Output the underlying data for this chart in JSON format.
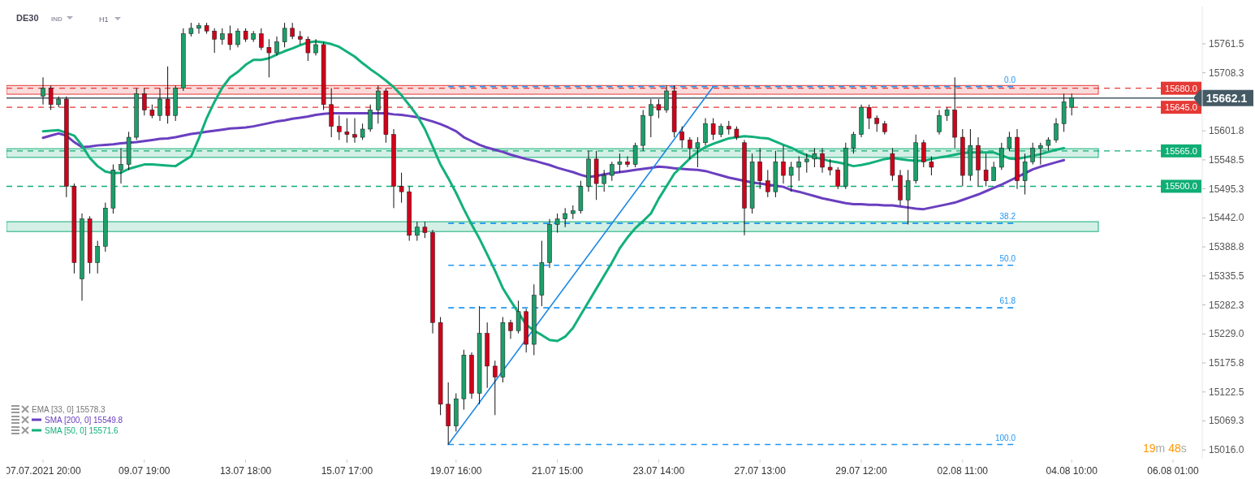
{
  "chart_data": {
    "type": "candlestick",
    "title": "DE30",
    "categories": [
      "07.07.2021 20:00",
      null,
      null,
      null,
      null,
      null,
      null,
      null,
      null,
      null,
      null,
      null,
      null,
      "09.07 19:00",
      null,
      null,
      null,
      null,
      null,
      null,
      null,
      null,
      null,
      null,
      null,
      null,
      "13.07 18:00",
      null,
      null,
      null,
      null,
      null,
      null,
      null,
      null,
      null,
      null,
      null,
      null,
      "15.07 17:00",
      null,
      null,
      null,
      null,
      null,
      null,
      null,
      null,
      null,
      null,
      null,
      null,
      null,
      "19.07 16:00",
      null,
      null,
      null,
      null,
      null,
      null,
      null,
      null,
      null,
      null,
      null,
      null,
      "21.07 15:00",
      null,
      null,
      null,
      null,
      null,
      null,
      null,
      null,
      null,
      null,
      null,
      null,
      "23.07 14:00",
      null,
      null,
      null,
      null,
      null,
      null,
      null,
      null,
      null,
      null,
      null,
      null,
      "27.07 13:00",
      null,
      null,
      null,
      null,
      null,
      null,
      null,
      null,
      null,
      null,
      null,
      null,
      "29.07 12:00",
      null,
      null,
      null,
      null,
      null,
      null,
      null,
      null,
      null,
      null,
      null,
      null,
      "02.08 11:00",
      null,
      null,
      null,
      null,
      null,
      null,
      null,
      null,
      null,
      null,
      null,
      null,
      null,
      "04.08 10:00",
      null,
      null,
      null,
      null,
      null,
      null,
      null,
      null,
      null,
      null,
      null,
      null,
      "06.08 01:00",
      null,
      null,
      null,
      null,
      null,
      null,
      null,
      null
    ],
    "ohlc": [
      [
        15665,
        15700,
        15650,
        15680
      ],
      [
        15680,
        15685,
        15640,
        15650
      ],
      [
        15650,
        15665,
        15645,
        15660
      ],
      [
        15660,
        15665,
        15480,
        15500
      ],
      [
        15500,
        15505,
        15340,
        15360
      ],
      [
        15330,
        15450,
        15290,
        15440
      ],
      [
        15440,
        15445,
        15340,
        15360
      ],
      [
        15360,
        15400,
        15340,
        15390
      ],
      [
        15390,
        15470,
        15380,
        15460
      ],
      [
        15460,
        15540,
        15450,
        15530
      ],
      [
        15530,
        15570,
        15505,
        15540
      ],
      [
        15540,
        15600,
        15530,
        15590
      ],
      [
        15590,
        15680,
        15585,
        15670
      ],
      [
        15670,
        15680,
        15630,
        15640
      ],
      [
        15640,
        15650,
        15625,
        15630
      ],
      [
        15630,
        15680,
        15620,
        15660
      ],
      [
        15660,
        15720,
        15615,
        15630
      ],
      [
        15630,
        15685,
        15620,
        15680
      ],
      [
        15680,
        15790,
        15675,
        15780
      ],
      [
        15780,
        15800,
        15775,
        15790
      ],
      [
        15790,
        15800,
        15780,
        15795
      ],
      [
        15795,
        15800,
        15780,
        15785
      ],
      [
        15785,
        15790,
        15745,
        15770
      ],
      [
        15770,
        15790,
        15760,
        15780
      ],
      [
        15780,
        15795,
        15750,
        15760
      ],
      [
        15760,
        15790,
        15755,
        15785
      ],
      [
        15785,
        15790,
        15765,
        15770
      ],
      [
        15770,
        15785,
        15765,
        15780
      ],
      [
        15780,
        15790,
        15750,
        15755
      ],
      [
        15755,
        15770,
        15700,
        15745
      ],
      [
        15745,
        15775,
        15740,
        15765
      ],
      [
        15765,
        15800,
        15755,
        15790
      ],
      [
        15790,
        15800,
        15770,
        15775
      ],
      [
        15775,
        15785,
        15760,
        15770
      ],
      [
        15770,
        15775,
        15730,
        15745
      ],
      [
        15745,
        15770,
        15740,
        15760
      ],
      [
        15760,
        15765,
        15640,
        15650
      ],
      [
        15650,
        15680,
        15590,
        15610
      ],
      [
        15610,
        15630,
        15585,
        15600
      ],
      [
        15600,
        15625,
        15580,
        15595
      ],
      [
        15595,
        15625,
        15580,
        15590
      ],
      [
        15590,
        15615,
        15585,
        15605
      ],
      [
        15605,
        15650,
        15600,
        15640
      ],
      [
        15640,
        15685,
        15615,
        15675
      ],
      [
        15675,
        15680,
        15580,
        15595
      ],
      [
        15595,
        15605,
        15460,
        15500
      ],
      [
        15500,
        15525,
        15470,
        15490
      ],
      [
        15490,
        15500,
        15400,
        15410
      ],
      [
        15410,
        15435,
        15400,
        15425
      ],
      [
        15425,
        15435,
        15405,
        15415
      ],
      [
        15415,
        15420,
        15230,
        15250
      ],
      [
        15250,
        15260,
        15080,
        15100
      ],
      [
        15100,
        15140,
        15026,
        15060
      ],
      [
        15060,
        15120,
        15050,
        15110
      ],
      [
        15110,
        15200,
        15090,
        15190
      ],
      [
        15190,
        15195,
        15110,
        15120
      ],
      [
        15120,
        15280,
        15100,
        15230
      ],
      [
        15230,
        15250,
        15130,
        15170
      ],
      [
        15170,
        15180,
        15080,
        15150
      ],
      [
        15150,
        15260,
        15140,
        15250
      ],
      [
        15250,
        15255,
        15220,
        15235
      ],
      [
        15235,
        15290,
        15230,
        15270
      ],
      [
        15270,
        15275,
        15195,
        15210
      ],
      [
        15210,
        15320,
        15190,
        15300
      ],
      [
        15300,
        15400,
        15280,
        15360
      ],
      [
        15360,
        15440,
        15350,
        15430
      ],
      [
        15430,
        15450,
        15415,
        15440
      ],
      [
        15440,
        15460,
        15425,
        15450
      ],
      [
        15450,
        15465,
        15440,
        15455
      ],
      [
        15455,
        15510,
        15450,
        15500
      ],
      [
        15500,
        15565,
        15490,
        15550
      ],
      [
        15550,
        15565,
        15475,
        15505
      ],
      [
        15505,
        15530,
        15490,
        15520
      ],
      [
        15520,
        15545,
        15510,
        15540
      ],
      [
        15540,
        15560,
        15525,
        15545
      ],
      [
        15545,
        15555,
        15535,
        15540
      ],
      [
        15540,
        15580,
        15535,
        15575
      ],
      [
        15575,
        15640,
        15565,
        15630
      ],
      [
        15630,
        15660,
        15590,
        15650
      ],
      [
        15650,
        15660,
        15625,
        15640
      ],
      [
        15640,
        15685,
        15635,
        15675
      ],
      [
        15675,
        15685,
        15590,
        15600
      ],
      [
        15600,
        15610,
        15570,
        15585
      ],
      [
        15585,
        15590,
        15550,
        15570
      ],
      [
        15570,
        15590,
        15535,
        15580
      ],
      [
        15580,
        15625,
        15575,
        15615
      ],
      [
        15615,
        15625,
        15585,
        15595
      ],
      [
        15595,
        15615,
        15590,
        15610
      ],
      [
        15610,
        15620,
        15595,
        15605
      ],
      [
        15605,
        15610,
        15585,
        15590
      ],
      [
        15580,
        15585,
        15410,
        15460
      ],
      [
        15460,
        15560,
        15450,
        15545
      ],
      [
        15545,
        15570,
        15495,
        15510
      ],
      [
        15510,
        15530,
        15480,
        15490
      ],
      [
        15490,
        15565,
        15480,
        15545
      ],
      [
        15545,
        15575,
        15505,
        15520
      ],
      [
        15520,
        15545,
        15490,
        15535
      ],
      [
        15535,
        15555,
        15510,
        15545
      ],
      [
        15545,
        15560,
        15525,
        15550
      ],
      [
        15550,
        15570,
        15535,
        15560
      ],
      [
        15560,
        15570,
        15525,
        15535
      ],
      [
        15535,
        15550,
        15520,
        15530
      ],
      [
        15530,
        15535,
        15495,
        15500
      ],
      [
        15500,
        15580,
        15495,
        15570
      ],
      [
        15570,
        15600,
        15560,
        15595
      ],
      [
        15595,
        15650,
        15590,
        15645
      ],
      [
        15645,
        15650,
        15605,
        15625
      ],
      [
        15625,
        15630,
        15600,
        15615
      ],
      [
        15615,
        15620,
        15595,
        15600
      ],
      [
        15560,
        15570,
        15510,
        15520
      ],
      [
        15520,
        15530,
        15465,
        15475
      ],
      [
        15475,
        15530,
        15430,
        15510
      ],
      [
        15510,
        15595,
        15505,
        15580
      ],
      [
        15580,
        15585,
        15535,
        15545
      ],
      [
        15545,
        15555,
        15520,
        15535
      ],
      [
        15600,
        15640,
        15595,
        15630
      ],
      [
        15630,
        15645,
        15620,
        15640
      ],
      [
        15640,
        15700,
        15570,
        15590
      ],
      [
        15590,
        15605,
        15500,
        15520
      ],
      [
        15520,
        15605,
        15510,
        15575
      ],
      [
        15575,
        15590,
        15500,
        15530
      ],
      [
        15530,
        15560,
        15500,
        15510
      ],
      [
        15510,
        15545,
        15510,
        15535
      ],
      [
        15535,
        15580,
        15530,
        15570
      ],
      [
        15570,
        15600,
        15565,
        15590
      ],
      [
        15590,
        15605,
        15495,
        15510
      ],
      [
        15510,
        15560,
        15485,
        15545
      ],
      [
        15545,
        15580,
        15540,
        15570
      ],
      [
        15570,
        15580,
        15540,
        15575
      ],
      [
        15575,
        15590,
        15565,
        15585
      ],
      [
        15585,
        15625,
        15580,
        15615
      ],
      [
        15615,
        15670,
        15600,
        15655
      ],
      [
        15645,
        15670,
        15630,
        15662.1
      ],
      null,
      null,
      null,
      null,
      null,
      null,
      null,
      null,
      null,
      null,
      null,
      null,
      null,
      null,
      null,
      null,
      null,
      null,
      null,
      null,
      null
    ],
    "series": [
      {
        "name": "SMA [200, 0] 15549.8",
        "type": "line",
        "color": "#6a3fc0",
        "values": [
          15589,
          15593,
          15597,
          15593,
          15581,
          15572,
          15573,
          15575,
          15576,
          15577,
          15579,
          15580,
          15581,
          15583,
          15585,
          15587,
          15588,
          15590,
          15593,
          15596,
          15598,
          15600,
          15602,
          15604,
          15606,
          15607,
          15608,
          15610,
          15613,
          15616,
          15619,
          15621,
          15624,
          15626,
          15628,
          15631,
          15633,
          15634,
          15634,
          15634,
          15634,
          15634,
          15634,
          15634,
          15634,
          15632,
          15631,
          15629,
          15627,
          15623,
          15619,
          15614,
          15608,
          15601,
          15590,
          15583,
          15576,
          15571,
          15567,
          15563,
          15558,
          15554,
          15550,
          15547,
          15543,
          15539,
          15534,
          15530,
          15526,
          15521,
          15517,
          15519,
          15522,
          15524,
          15526,
          15528,
          15530,
          15532,
          15534,
          15536,
          15535,
          15533,
          15532,
          15531,
          15530,
          15528,
          15524,
          15520,
          15516,
          15513,
          15510,
          15507,
          15505,
          15503,
          15501,
          15499,
          15493,
          15490,
          15486,
          15482,
          15478,
          15475,
          15472,
          15469,
          15467,
          15467,
          15466,
          15466,
          15465,
          15465,
          15463,
          15461,
          15459,
          15458,
          15461,
          15464,
          15467,
          15470,
          15475,
          15480,
          15485,
          15491,
          15497,
          15503,
          15510,
          15517,
          15524,
          15531,
          15536,
          15540,
          15544,
          15548,
          null,
          null,
          null,
          null,
          null,
          null,
          null,
          null,
          null,
          null,
          null,
          null,
          null,
          null,
          null,
          null,
          null,
          null,
          null,
          null,
          null,
          null
        ]
      },
      {
        "name": "SMA [50, 0] 15571.6",
        "type": "line",
        "color": "#12b07a",
        "values": [
          15601,
          15602,
          15603,
          15598,
          15593,
          15575,
          15552,
          15537,
          15527,
          15524,
          15525,
          15532,
          15536,
          15540,
          15540,
          15539,
          15538,
          15537,
          15546,
          15555,
          15588,
          15625,
          15655,
          15681,
          15700,
          15710,
          15723,
          15732,
          15732,
          15735,
          15742,
          15748,
          15753,
          15759,
          15764,
          15766,
          15764,
          15761,
          15756,
          15747,
          15738,
          15726,
          15715,
          15705,
          15694,
          15682,
          15667,
          15649,
          15630,
          15605,
          15573,
          15540,
          15515,
          15488,
          15458,
          15430,
          15404,
          15375,
          15345,
          15313,
          15290,
          15268,
          15246,
          15235,
          15227,
          15218,
          15216,
          15224,
          15240,
          15264,
          15288,
          15312,
          15336,
          15360,
          15386,
          15406,
          15423,
          15436,
          15450,
          15477,
          15500,
          15523,
          15537,
          15551,
          15563,
          15572,
          15578,
          15583,
          15588,
          15590,
          15592,
          15591,
          15589,
          15588,
          15582,
          15576,
          15571,
          15563,
          15557,
          15553,
          15550,
          15546,
          15544,
          15541,
          15537,
          15539,
          15542,
          15546,
          15550,
          15552,
          15550,
          15548,
          15547,
          15547,
          15550,
          15553,
          15555,
          15558,
          15561,
          15562,
          15562,
          15562,
          15562,
          15557,
          15551,
          15550,
          15553,
          15556,
          15559,
          15563,
          15567,
          15570,
          null,
          null,
          null,
          null,
          null,
          null,
          null,
          null,
          null,
          null,
          null,
          null,
          null,
          null,
          null,
          null,
          null,
          null,
          null,
          null,
          null,
          null
        ]
      },
      {
        "type": "line",
        "color": "#1e88e5",
        "values": [
          null,
          null,
          null,
          null,
          null,
          null,
          null,
          null,
          null,
          null,
          null,
          null,
          null,
          null,
          null,
          null,
          null,
          null,
          null,
          null,
          null,
          null,
          null,
          null,
          null,
          null,
          null,
          null,
          null,
          null,
          null,
          null,
          null,
          null,
          null,
          null,
          null,
          null,
          null,
          null,
          null,
          null,
          null,
          null,
          null,
          null,
          null,
          null,
          null,
          null,
          null,
          null,
          15026,
          null,
          null,
          null,
          null,
          null,
          null,
          null,
          null,
          null,
          null,
          null,
          null,
          null,
          null,
          null,
          null,
          null,
          null,
          null,
          null,
          null,
          null,
          null,
          null,
          null,
          null,
          null,
          null,
          null,
          null,
          null,
          null,
          null,
          15683,
          null,
          null,
          null,
          null,
          null,
          null,
          null,
          null,
          null,
          null,
          null,
          null,
          null,
          null,
          null,
          null,
          null,
          null,
          null,
          null,
          null,
          null,
          null,
          null,
          null,
          null,
          null,
          null,
          null,
          null,
          null,
          null,
          null,
          null,
          null,
          null,
          null,
          null,
          null,
          null,
          null,
          null,
          null,
          null,
          null,
          null,
          null,
          null,
          null,
          null,
          null,
          null,
          null,
          null,
          null,
          null,
          null,
          null,
          null,
          null,
          null,
          null,
          null,
          null,
          null,
          null,
          null
        ]
      }
    ],
    "ylim": [
      15000,
      15830
    ],
    "yticks": [
      {
        "value": 15016,
        "label": "15016.0"
      },
      15069.3,
      15122.5,
      15175.8,
      {
        "value": 15229,
        "label": "15229.0"
      },
      15282.3,
      15335.5,
      15388.8,
      {
        "value": 15442,
        "label": "15442.0"
      },
      15495.3,
      15548.5,
      15601.8,
      15708.3,
      15761.5
    ],
    "ref_lines": [
      {
        "axis": "y",
        "value": 15683,
        "color": "#2196f3",
        "line_style": "dashed"
      },
      {
        "axis": "y",
        "value": 15432,
        "color": "#2196f3",
        "line_style": "dashed"
      },
      {
        "axis": "y",
        "value": 15355,
        "color": "#2196f3",
        "line_style": "dashed"
      },
      {
        "axis": "y",
        "value": 15277,
        "color": "#2196f3",
        "line_style": "dashed"
      },
      {
        "axis": "y",
        "value": 15026,
        "color": "#2196f3",
        "line_style": "dashed"
      },
      {
        "axis": "y",
        "value": 15680,
        "label": "15680.0",
        "color": "#e53935",
        "line_style": "dashed"
      },
      {
        "axis": "y",
        "value": 15645,
        "label": "15645.0",
        "color": "#e53935",
        "line_style": "dashed"
      },
      {
        "axis": "y",
        "value": 15565,
        "label": "15565.0",
        "color": "#0fae74",
        "line_style": "dashed"
      },
      {
        "axis": "y",
        "value": 15500,
        "label": "15500.0",
        "color": "#0fae74",
        "line_style": "dashed"
      },
      {
        "axis": "y",
        "value": 15662.1,
        "label": "15662.1",
        "color": "#455a64",
        "line_style": "solid"
      }
    ],
    "bands": [
      {
        "axis": "y",
        "from": 15669,
        "to": 15685,
        "color": "#e53935"
      },
      {
        "axis": "y",
        "from": 15553,
        "to": 15569,
        "color": "#0fae74"
      },
      {
        "axis": "y",
        "from": 15417,
        "to": 15435,
        "color": "#0fae74"
      }
    ],
    "annotations": [
      "IND",
      "H1",
      "19m 48s",
      "EMA [33, 0] 15578.3",
      {
        "text": "0.0",
        "y": 15683
      },
      {
        "text": "38.2",
        "y": 15432
      },
      {
        "text": "50.0",
        "y": 15355
      },
      {
        "text": "61.8",
        "y": 15277
      },
      {
        "text": "100.0",
        "y": 15026
      }
    ],
    "legend": "bottom left",
    "grid": false
  }
}
